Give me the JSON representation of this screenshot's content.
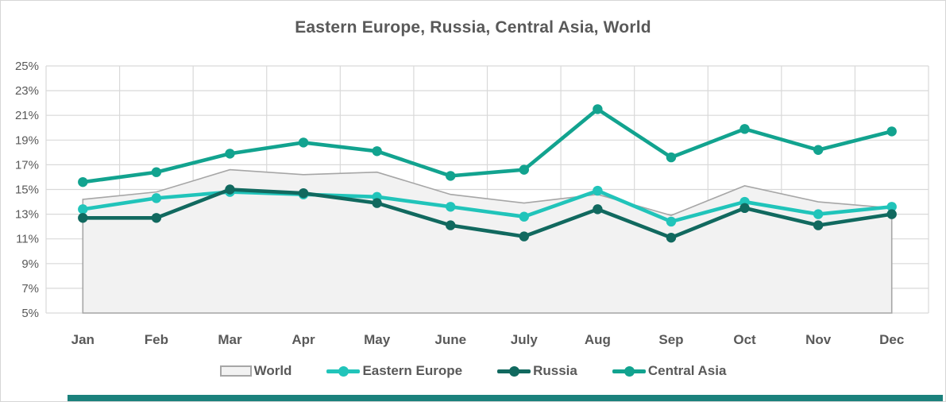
{
  "window": {
    "background": "#ffffff",
    "border_color": "#d6d6d6",
    "bottom_bar_color": "#1b817c"
  },
  "chart_data": {
    "type": "line",
    "title": "Eastern Europe, Russia, Central Asia, World",
    "categories": [
      "Jan",
      "Feb",
      "Mar",
      "Apr",
      "May",
      "June",
      "July",
      "Aug",
      "Sep",
      "Oct",
      "Nov",
      "Dec"
    ],
    "series": [
      {
        "name": "World",
        "type": "area",
        "color": "#a6a6a6",
        "fill": "#f2f2f2",
        "values": [
          14.2,
          14.8,
          16.6,
          16.2,
          16.4,
          14.6,
          13.9,
          14.6,
          12.9,
          15.3,
          14.0,
          13.5
        ]
      },
      {
        "name": "Eastern Europe",
        "type": "line",
        "color": "#21c4ba",
        "values": [
          13.4,
          14.3,
          14.8,
          14.6,
          14.4,
          13.6,
          12.8,
          14.9,
          12.4,
          14.0,
          13.0,
          13.6
        ]
      },
      {
        "name": "Russia",
        "type": "line",
        "color": "#11695f",
        "values": [
          12.7,
          12.7,
          15.0,
          14.7,
          13.9,
          12.1,
          11.2,
          13.4,
          11.1,
          13.5,
          12.1,
          13.0
        ]
      },
      {
        "name": "Central Asia",
        "type": "line",
        "color": "#12a38f",
        "values": [
          15.6,
          16.4,
          17.9,
          18.8,
          18.1,
          16.1,
          16.6,
          21.5,
          17.6,
          19.9,
          18.2,
          19.7
        ]
      }
    ],
    "ylim": [
      5,
      25
    ],
    "ytick_step": 2,
    "yticks": [
      "25%",
      "23%",
      "21%",
      "19%",
      "17%",
      "15%",
      "13%",
      "11%",
      "9%",
      "7%",
      "5%"
    ],
    "grid": true,
    "legend_position": "bottom",
    "axis_label_color": "#595959",
    "gridline_color": "#d9d9d9"
  }
}
